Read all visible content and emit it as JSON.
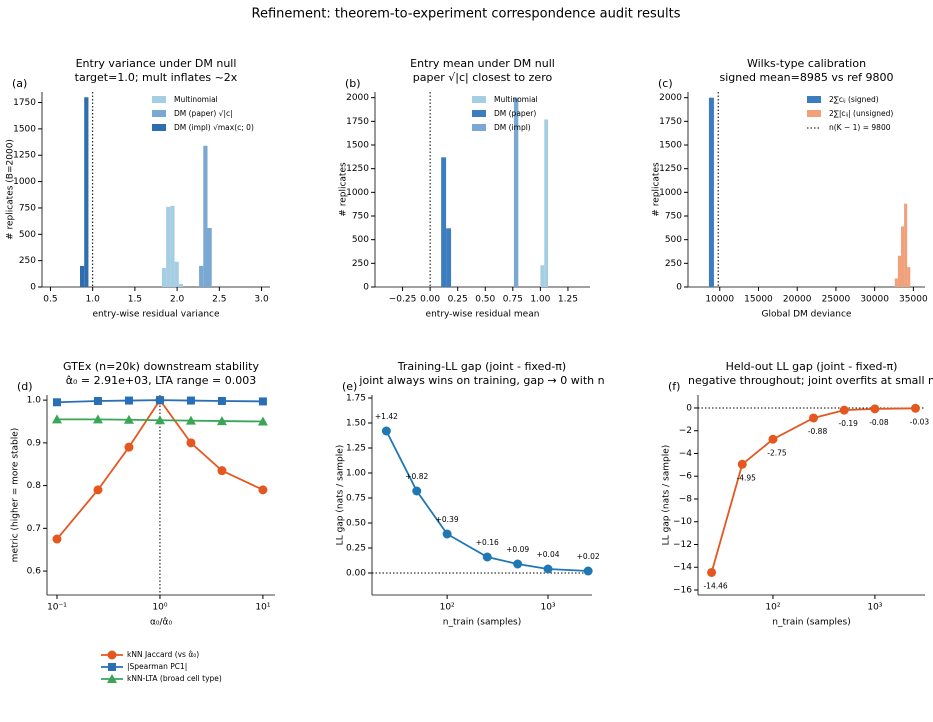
{
  "title": "Refinement: theorem-to-experiment correspondence audit results",
  "chart_data": [
    {
      "type": "histogram",
      "panel_label": "(a)",
      "title": [
        "Entry variance under DM null",
        "target=1.0; mult inflates ~2x"
      ],
      "xlabel": "entry-wise residual variance",
      "ylabel": "# replicates (B=2000)",
      "xlim": [
        0.4,
        3.1
      ],
      "ylim": [
        0,
        1850
      ],
      "xticks": [
        0.5,
        {
          "value": 1,
          "label": "1.0"
        },
        1.5,
        {
          "value": 2,
          "label": "2.0"
        },
        2.5,
        {
          "value": 3,
          "label": "3.0"
        }
      ],
      "yticks": [
        0,
        250,
        500,
        750,
        1000,
        1250,
        1500,
        1750
      ],
      "legend": "upper right",
      "series": [
        {
          "name": "Multinomial",
          "color": "#a6cee3",
          "bins": [
            1.82,
            1.87,
            1.92,
            1.97,
            2.02,
            2.07
          ],
          "values": [
            180,
            760,
            770,
            240,
            30
          ]
        },
        {
          "name": "DM (paper) √|c|",
          "color": "#79a8d3",
          "bins": [
            2.26,
            2.31,
            2.36,
            2.41
          ],
          "values": [
            200,
            1340,
            560
          ]
        },
        {
          "name": "DM (impl) √max(c; 0)",
          "color": "#2f6eae",
          "bins": [
            0.85,
            0.9,
            0.95
          ],
          "values": [
            200,
            1800
          ]
        }
      ],
      "reference_lines": [
        {
          "x": 1
        }
      ]
    },
    {
      "type": "histogram",
      "panel_label": "(b)",
      "title": [
        "Entry mean under DM null",
        "paper √|c| closest to zero"
      ],
      "xlabel": "entry-wise residual mean",
      "ylabel": "# replicates",
      "xlim": [
        -0.5,
        1.45
      ],
      "ylim": [
        0,
        2060
      ],
      "xticks": [
        {
          "value": -0.25,
          "label": "−0.25"
        },
        {
          "value": 0,
          "label": "0.00"
        },
        {
          "value": 0.25,
          "label": "0.25"
        },
        {
          "value": 0.5,
          "label": "0.50"
        },
        {
          "value": 0.75,
          "label": "0.75"
        },
        {
          "value": 1,
          "label": "1.00"
        },
        {
          "value": 1.25,
          "label": "1.25"
        }
      ],
      "yticks": [
        0,
        250,
        500,
        750,
        1000,
        1250,
        1500,
        1750,
        2000
      ],
      "legend": "upper right",
      "series": [
        {
          "name": "Multinomial",
          "color": "#a6cee3",
          "bins": [
            1.0,
            1.035,
            1.07
          ],
          "values": [
            230,
            1770
          ]
        },
        {
          "name": "DM (paper)",
          "color": "#3b7dbf",
          "bins": [
            0.1,
            0.145,
            0.19
          ],
          "values": [
            1370,
            620
          ]
        },
        {
          "name": "DM (impl)",
          "color": "#79a8d3",
          "bins": [
            0.76,
            0.8
          ],
          "values": [
            2000
          ]
        }
      ],
      "reference_lines": [
        {
          "x": 0
        }
      ]
    },
    {
      "type": "histogram",
      "panel_label": "(c)",
      "title": [
        "Wilks-type calibration",
        "signed mean=8985 vs ref 9800"
      ],
      "xlabel": "Global DM deviance",
      "ylabel": "# replicates",
      "xlim": [
        5900,
        36500
      ],
      "ylim": [
        0,
        2060
      ],
      "xticks": [
        10000,
        15000,
        20000,
        25000,
        30000,
        35000
      ],
      "yticks": [
        0,
        250,
        500,
        750,
        1000,
        1250,
        1500,
        1750,
        2000
      ],
      "legend": "upper right",
      "series": [
        {
          "name": "2∑cᵢⱼ (signed)",
          "color": "#3b7dbf",
          "bins": [
            8600,
            9250
          ],
          "values": [
            2000
          ]
        },
        {
          "name": "2∑|cᵢⱼ| (unsigned)",
          "color": "#f0a07a",
          "bins": [
            32600,
            33000,
            33400,
            33800,
            34200,
            34600
          ],
          "values": [
            90,
            330,
            640,
            880,
            210
          ]
        }
      ],
      "reference_lines": [
        {
          "x": 9800,
          "name": "n(K − 1) = 9800"
        }
      ]
    },
    {
      "type": "line",
      "panel_label": "(d)",
      "title": [
        "GTEx (n=20k) downstream stability",
        "α̂₀ = 2.91e+03,  LTA range = 0.003"
      ],
      "xlabel": "α₀/α̂₀",
      "ylabel": "metric (higher = more stable)",
      "xscale": "log",
      "xlim": [
        0.08,
        13.1
      ],
      "ylim": [
        0.544,
        1.012
      ],
      "xticks": [
        {
          "value": 0.1,
          "label": "10⁻¹"
        },
        {
          "value": 1,
          "label": "10⁰"
        },
        {
          "value": 10,
          "label": "10¹"
        }
      ],
      "yticks": [
        0.6,
        0.7,
        0.8,
        0.9,
        {
          "value": 1,
          "label": "1.0"
        }
      ],
      "legend": "below",
      "x": [
        0.1,
        0.25,
        0.5,
        1,
        2,
        4,
        10
      ],
      "series": [
        {
          "name": "kNN Jaccard (vs α̂₀)",
          "color": "#e4581f",
          "marker": "o",
          "values": [
            0.675,
            0.79,
            0.89,
            1.0,
            0.9,
            0.835,
            0.79
          ]
        },
        {
          "name": "|Spearman PC1|",
          "color": "#2a6fb5",
          "marker": "s",
          "values": [
            0.995,
            0.998,
            0.999,
            1.0,
            0.999,
            0.998,
            0.997
          ]
        },
        {
          "name": "kNN-LTA (broad cell type)",
          "color": "#3aa655",
          "marker": "^",
          "values": [
            0.955,
            0.955,
            0.954,
            0.953,
            0.952,
            0.951,
            0.95
          ]
        }
      ],
      "reference_lines": [
        {
          "x": 1
        }
      ]
    },
    {
      "type": "line",
      "panel_label": "(e)",
      "title": [
        "Training-LL gap (joint - fixed-π)",
        "joint always wins on training, gap → 0 with n"
      ],
      "xlabel": "n_train (samples)",
      "ylabel": "LL gap (nats / sample)",
      "xscale": "log",
      "xlim": [
        18,
        2730
      ],
      "ylim": [
        -0.22,
        1.78
      ],
      "xticks": [
        {
          "value": 100,
          "label": "10²"
        },
        {
          "value": 1000,
          "label": "10³"
        }
      ],
      "yticks": [
        {
          "value": 0,
          "label": "0.00"
        },
        {
          "value": 0.25,
          "label": "0.25"
        },
        {
          "value": 0.5,
          "label": "0.50"
        },
        {
          "value": 0.75,
          "label": "0.75"
        },
        {
          "value": 1,
          "label": "1.00"
        },
        {
          "value": 1.25,
          "label": "1.25"
        },
        {
          "value": 1.5,
          "label": "1.50"
        },
        {
          "value": 1.75,
          "label": "1.75"
        }
      ],
      "x": [
        25,
        50,
        100,
        250,
        500,
        1000,
        2500
      ],
      "value_label_position": "above",
      "series": [
        {
          "color": "#1f77b4",
          "marker": "o",
          "values": [
            1.42,
            0.82,
            0.39,
            0.16,
            0.09,
            0.04,
            0.02
          ],
          "value_labels": [
            "+1.42",
            "+0.82",
            "+0.39",
            "+0.16",
            "+0.09",
            "+0.04",
            "+0.02"
          ]
        }
      ],
      "reference_lines": [
        {
          "y": 0
        }
      ]
    },
    {
      "type": "line",
      "panel_label": "(f)",
      "title": [
        "Held-out LL gap (joint - fixed-π)",
        "negative throughout; joint overfits at small n"
      ],
      "xlabel": "n_train (samples)",
      "ylabel": "LL gap (nats / sample)",
      "xscale": "log",
      "xlim": [
        18.4,
        3100
      ],
      "ylim": [
        -16.44,
        1.14
      ],
      "xticks": [
        {
          "value": 100,
          "label": "10²"
        },
        {
          "value": 1000,
          "label": "10³"
        }
      ],
      "yticks": [
        {
          "value": -16,
          "label": "−16"
        },
        {
          "value": -14,
          "label": "−14"
        },
        {
          "value": -12,
          "label": "−12"
        },
        {
          "value": -10,
          "label": "−10"
        },
        {
          "value": -8,
          "label": "−8"
        },
        {
          "value": -6,
          "label": "−6"
        },
        {
          "value": -4,
          "label": "−4"
        },
        {
          "value": -2,
          "label": "−2"
        },
        0
      ],
      "x": [
        25,
        50,
        100,
        250,
        500,
        1000,
        2500
      ],
      "value_label_position": "below",
      "series": [
        {
          "color": "#e4581f",
          "marker": "o",
          "values": [
            -14.46,
            -4.95,
            -2.75,
            -0.88,
            -0.19,
            -0.08,
            -0.03
          ],
          "value_labels": [
            "-14.46",
            "-4.95",
            "-2.75",
            "-0.88",
            "-0.19",
            "-0.08",
            "-0.03"
          ]
        }
      ],
      "reference_lines": [
        {
          "y": 0
        }
      ]
    }
  ]
}
